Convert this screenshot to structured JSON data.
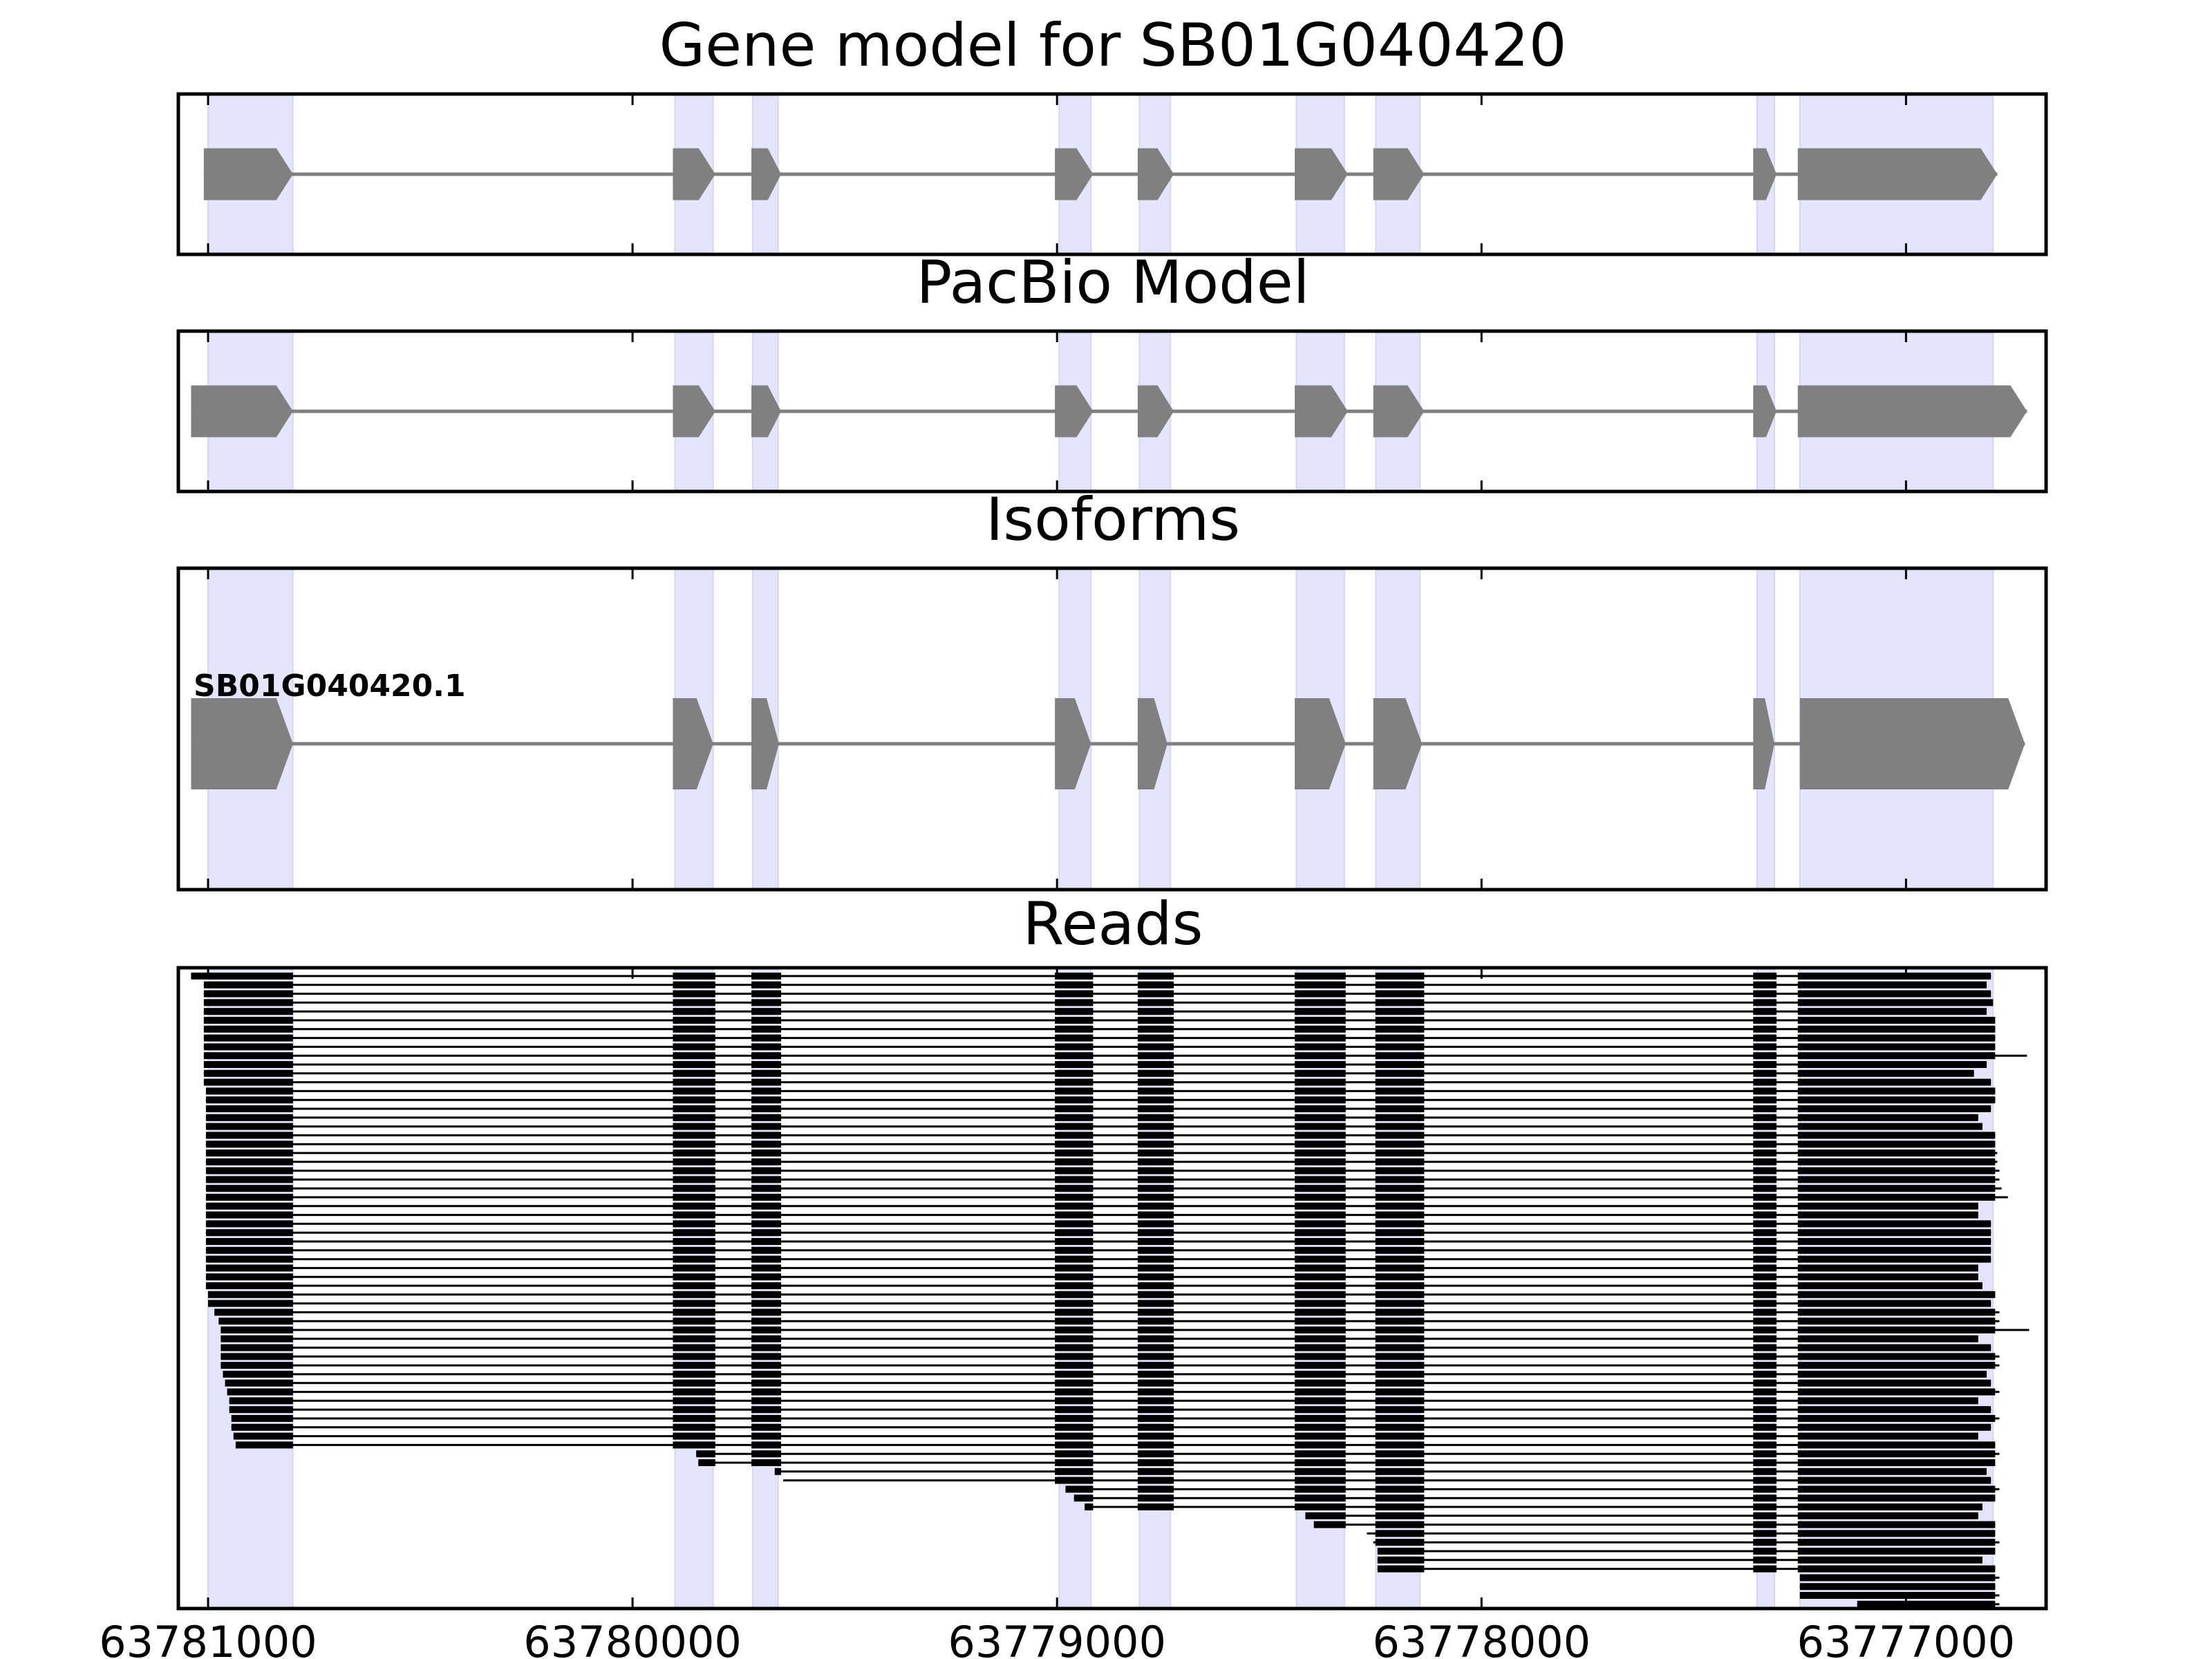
{
  "chart_data": {
    "type": "gene-track",
    "x_axis_reversed": true,
    "xlim": [
      63781070,
      63776670
    ],
    "xticks": [
      63781000,
      63780000,
      63779000,
      63778000,
      63777000
    ],
    "xtick_labels": [
      "63781000",
      "63780000",
      "63779000",
      "63778000",
      "63777000"
    ],
    "colors": {
      "shade": "#e4e4fc",
      "feature": "#808080",
      "read": "#000000",
      "frame": "#000000"
    },
    "exon_shading": [
      [
        63781000,
        63780800
      ],
      [
        63779900,
        63779810
      ],
      [
        63779717,
        63779657
      ],
      [
        63778995,
        63778920
      ],
      [
        63778806,
        63778733
      ],
      [
        63778436,
        63778323
      ],
      [
        63778249,
        63778145
      ],
      [
        63777351,
        63777310
      ],
      [
        63777250,
        63776795
      ]
    ],
    "panels": [
      {
        "title": "Gene model for SB01G040420",
        "tracks": [
          {
            "label": "",
            "exons": [
              [
                63781010,
                63780800
              ],
              [
                63779905,
                63779805
              ],
              [
                63779720,
                63779650
              ],
              [
                63779005,
                63778915
              ],
              [
                63778810,
                63778725
              ],
              [
                63778440,
                63778315
              ],
              [
                63778255,
                63778135
              ],
              [
                63777360,
                63777305
              ],
              [
                63777255,
                63776785
              ]
            ]
          }
        ]
      },
      {
        "title": "PacBio Model",
        "tracks": [
          {
            "label": "",
            "exons": [
              [
                63781040,
                63780800
              ],
              [
                63779905,
                63779805
              ],
              [
                63779720,
                63779650
              ],
              [
                63779005,
                63778915
              ],
              [
                63778810,
                63778725
              ],
              [
                63778440,
                63778315
              ],
              [
                63778255,
                63778135
              ],
              [
                63777360,
                63777305
              ],
              [
                63777255,
                63776715
              ]
            ]
          }
        ]
      },
      {
        "title": "Isoforms",
        "tracks": [
          {
            "label": "SB01G040420.1",
            "exons": [
              [
                63781040,
                63780800
              ],
              [
                63779905,
                63779810
              ],
              [
                63779720,
                63779655
              ],
              [
                63779005,
                63778920
              ],
              [
                63778810,
                63778740
              ],
              [
                63778440,
                63778320
              ],
              [
                63778255,
                63778140
              ],
              [
                63777360,
                63777310
              ],
              [
                63777250,
                63776720
              ]
            ]
          }
        ]
      },
      {
        "title": "Reads",
        "read_count": 72,
        "exons": [
          [
            63781040,
            63780800
          ],
          [
            63779905,
            63779805
          ],
          [
            63779720,
            63779650
          ],
          [
            63779005,
            63778915
          ],
          [
            63778810,
            63778725
          ],
          [
            63778440,
            63778320
          ],
          [
            63778250,
            63778135
          ],
          [
            63777360,
            63777305
          ],
          [
            63777255,
            63776790
          ]
        ],
        "read_starts": [
          63781040,
          63781010,
          63781010,
          63781010,
          63781010,
          63781010,
          63781010,
          63781010,
          63781010,
          63781010,
          63781010,
          63781010,
          63781010,
          63781005,
          63781005,
          63781005,
          63781005,
          63781005,
          63781005,
          63781005,
          63781005,
          63781005,
          63781005,
          63781005,
          63781005,
          63781005,
          63781005,
          63781005,
          63781005,
          63781005,
          63781005,
          63781005,
          63781005,
          63781005,
          63781005,
          63781005,
          63781000,
          63781000,
          63780985,
          63780975,
          63780970,
          63780970,
          63780970,
          63780970,
          63780970,
          63780965,
          63780960,
          63780955,
          63780950,
          63780950,
          63780945,
          63780945,
          63780940,
          63780935,
          63779850,
          63779845,
          63779665,
          63779645,
          63778980,
          63778960,
          63778935,
          63778415,
          63778395,
          63778270,
          63778255,
          63778245,
          63778245,
          63778245,
          63777250,
          63777250,
          63777250,
          63777115
        ],
        "read_ends": [
          63776800,
          63776810,
          63776800,
          63776795,
          63776810,
          63776790,
          63776790,
          63776790,
          63776790,
          63776715,
          63776810,
          63776840,
          63776800,
          63776790,
          63776790,
          63776800,
          63776830,
          63776820,
          63776790,
          63776790,
          63776785,
          63776785,
          63776780,
          63776780,
          63776775,
          63776760,
          63776830,
          63776830,
          63776800,
          63776800,
          63776800,
          63776800,
          63776800,
          63776830,
          63776830,
          63776820,
          63776790,
          63776800,
          63776780,
          63776780,
          63776710,
          63776830,
          63776800,
          63776780,
          63776780,
          63776810,
          63776800,
          63776780,
          63776830,
          63776800,
          63776780,
          63776800,
          63776830,
          63776790,
          63776780,
          63776790,
          63776810,
          63776800,
          63776780,
          63776790,
          63776820,
          63776830,
          63776790,
          63776790,
          63776780,
          63776790,
          63776820,
          63776790,
          63776780,
          63776790,
          63776780,
          63776780
        ]
      }
    ]
  }
}
